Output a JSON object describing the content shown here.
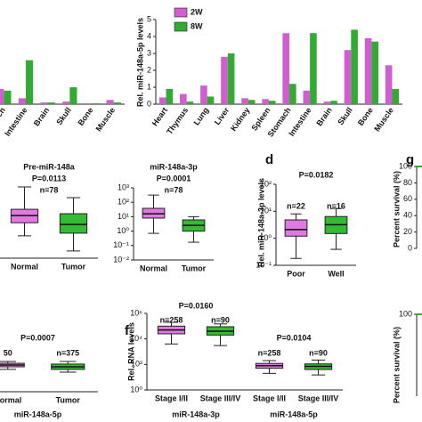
{
  "chart_data": [
    {
      "type": "bar",
      "categories": [
        "ach",
        "Intestine",
        "Brain",
        "Skull",
        "Bone",
        "Muscle"
      ],
      "series": [
        {
          "color": "#d15ed1",
          "values": [
            0.9,
            0.35,
            0.1,
            0.15,
            0.05,
            0.25
          ]
        },
        {
          "color": "#33aa33",
          "values": [
            0.8,
            2.6,
            0.1,
            1.0,
            0.05,
            0.1
          ]
        }
      ],
      "ylim": [
        0,
        5
      ]
    },
    {
      "type": "bar",
      "ylabel": "Rel. miR-148a-5p levels",
      "categories": [
        "Heart",
        "Thymus",
        "Lung",
        "Liver",
        "Kidney",
        "Spleen",
        "Stomach",
        "Intestine",
        "Brain",
        "Skull",
        "Bone",
        "Muscle"
      ],
      "series": [
        {
          "name": "2W",
          "color": "#d15ed1",
          "values": [
            0.4,
            0.6,
            1.1,
            2.8,
            0.35,
            0.3,
            4.2,
            0.8,
            0.15,
            3.2,
            3.9,
            2.3
          ]
        },
        {
          "name": "8W",
          "color": "#33aa33",
          "values": [
            0.9,
            0.15,
            0.45,
            3.0,
            0.25,
            0.2,
            1.2,
            4.2,
            0.2,
            4.4,
            3.7,
            0.9
          ]
        }
      ],
      "ylim": [
        0,
        5
      ],
      "yticks": [
        0,
        1,
        2,
        3,
        4,
        5
      ],
      "legend": "top-left"
    },
    {
      "type": "box",
      "title": "Pre-miR-148a",
      "p_labels": [
        "P=0.0113"
      ],
      "n_labels": [
        "n=78"
      ],
      "categories": [
        "Normal",
        "Tumor"
      ],
      "colors": [
        "#e07ae0",
        "#33bb33"
      ],
      "log": true,
      "ylim": [
        0.001,
        100
      ],
      "boxes": [
        {
          "whislo": 0.03,
          "q1": 0.22,
          "median": 0.66,
          "q3": 1.7,
          "whishi": 51
        },
        {
          "whislo": 0.003,
          "q1": 0.045,
          "median": 0.17,
          "q3": 0.87,
          "whishi": 10
        }
      ]
    },
    {
      "type": "box",
      "title": "miR-148a-3p",
      "p_labels": [
        "P=0.0001"
      ],
      "n_labels": [
        "n=78"
      ],
      "categories": [
        "Normal",
        "Tumor"
      ],
      "colors": [
        "#e07ae0",
        "#33bb33"
      ],
      "log": true,
      "ylim": [
        0.01,
        1000
      ],
      "yticks": [
        {
          "value": 0.01,
          "label": "10⁻²"
        },
        {
          "value": 0.1,
          "label": "10⁻¹"
        },
        {
          "value": 1,
          "label": "10⁰"
        },
        {
          "value": 10,
          "label": "10¹"
        },
        {
          "value": 100,
          "label": "10²"
        },
        {
          "value": 1000,
          "label": "10³"
        }
      ],
      "boxes": [
        {
          "whislo": 0.7,
          "q1": 8,
          "median": 16,
          "q3": 38,
          "whishi": 316
        },
        {
          "whislo": 0.17,
          "q1": 1,
          "median": 2.5,
          "q3": 6,
          "whishi": 10
        }
      ]
    },
    {
      "type": "box",
      "label": "d",
      "ylabel": "Rel. miR-148a-3p levels",
      "p_labels": [
        "P=0.0182"
      ],
      "n_labels": [
        "n=22",
        "n=16"
      ],
      "categories": [
        "Poor",
        "Well"
      ],
      "colors": [
        "#e07ae0",
        "#33bb33"
      ],
      "log": true,
      "ylim": [
        0.1,
        100
      ],
      "yticks": [
        {
          "value": 0.1,
          "label": "10⁻¹"
        },
        {
          "value": 1,
          "label": "10⁰"
        },
        {
          "value": 10,
          "label": "10¹"
        },
        {
          "value": 100,
          "label": "10²"
        }
      ],
      "boxes": [
        {
          "whislo": 0.18,
          "q1": 1.2,
          "median": 2.1,
          "q3": 4.8,
          "whishi": 8
        },
        {
          "whislo": 0.39,
          "q1": 1.5,
          "median": 3.2,
          "q3": 6.4,
          "whishi": 12.6
        }
      ]
    },
    {
      "type": "line",
      "label": "g",
      "ylabel": "Percent survival (%)",
      "categories": [
        null,
        null
      ],
      "series": [
        {
          "color": "#33aa33",
          "values": [
            100,
            100
          ]
        }
      ],
      "ylim": [
        0,
        100
      ],
      "yticks": [
        0,
        20,
        40,
        60,
        80,
        100
      ]
    },
    {
      "type": "box",
      "p_labels": [
        "P=0.0007"
      ],
      "n_labels": [
        "50",
        "n=375"
      ],
      "groups": [
        "miR-148a-5p"
      ],
      "categories": [
        "Normal",
        "Tumor"
      ],
      "colors": [
        "#e07ae0",
        "#33bb33"
      ],
      "log": true,
      "ylim": [
        1,
        1000000
      ],
      "boxes": [
        {
          "whislo": 76,
          "q1": 126,
          "median": 178,
          "q3": 250,
          "whishi": 355
        },
        {
          "whislo": 45,
          "q1": 76,
          "median": 126,
          "q3": 214,
          "whishi": 355
        }
      ]
    },
    {
      "type": "box",
      "label": "f",
      "ylabel": "Rel. RNA levels",
      "p_labels": [
        "P=0.0160",
        "P=0.0104"
      ],
      "n_labels": [
        "n=258",
        "n=90",
        "n=258",
        "n=90"
      ],
      "groups": [
        "miR-148a-3p",
        "miR-148a-5p"
      ],
      "categories": [
        "Stage I/II",
        "Stage III/IV",
        "Stage I/II",
        "Stage III/IV"
      ],
      "colors": [
        "#e07ae0",
        "#33bb33",
        "#e07ae0",
        "#33bb33"
      ],
      "log": true,
      "ylim": [
        1,
        1000000
      ],
      "yticks": [
        {
          "value": 1,
          "label": "10⁰"
        },
        {
          "value": 100,
          "label": "10²"
        },
        {
          "value": 10000,
          "label": "10⁴"
        },
        {
          "value": 1000000,
          "label": "10⁶"
        }
      ],
      "boxes": [
        {
          "whislo": 4000,
          "q1": 25000,
          "median": 50000,
          "q3": 100000,
          "whishi": 200000
        },
        {
          "whislo": 3000,
          "q1": 20000,
          "median": 40000,
          "q3": 90000,
          "whishi": 150000
        },
        {
          "whislo": 20,
          "q1": 50,
          "median": 80,
          "q3": 120,
          "whishi": 200
        },
        {
          "whislo": 15,
          "q1": 40,
          "median": 70,
          "q3": 110,
          "whishi": 220
        }
      ]
    },
    {
      "type": "line",
      "ylabel": "Percent survival (%)",
      "categories": [
        null,
        null
      ],
      "series": [
        {
          "color": "#33aa33",
          "values": [
            100,
            100
          ]
        }
      ],
      "ylim": [
        0,
        100
      ],
      "yticks": [
        100
      ]
    }
  ]
}
